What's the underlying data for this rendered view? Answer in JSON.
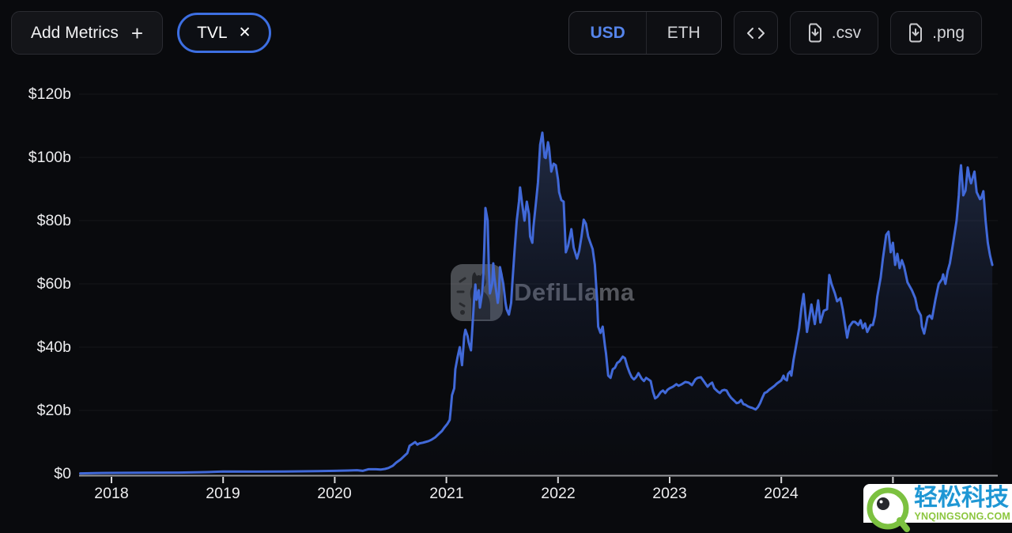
{
  "toolbar": {
    "add_metrics": {
      "label": "Add Metrics",
      "plus_icon": "+"
    },
    "metric_chips": [
      {
        "label": "TVL",
        "close_icon": "✕"
      }
    ],
    "currency_toggle": {
      "options": [
        "USD",
        "ETH"
      ],
      "selected": "USD"
    },
    "downloads": [
      {
        "label": ".csv"
      },
      {
        "label": ".png"
      }
    ]
  },
  "watermarks": {
    "center": "DefiLlama",
    "corner": {
      "title": "轻松科技",
      "subtitle": "YNQINGSONG.COM"
    }
  },
  "colors": {
    "accent_blue": "#3d6fe2",
    "line_blue": "#4169d8",
    "usd_selected": "#5584ea",
    "corner_blue": "#1f97d4",
    "corner_green": "#8cc63f"
  },
  "chart_data": {
    "type": "line",
    "title": "",
    "xlabel": "",
    "ylabel": "",
    "unit": "billion USD",
    "legend": "none",
    "grid": "faint-horizontal",
    "x_axis": {
      "labels": [
        "2018",
        "2019",
        "2020",
        "2021",
        "2022",
        "2023",
        "2024"
      ],
      "tick_years": [
        2018,
        2019,
        2020,
        2021,
        2022,
        2023,
        2024,
        2025
      ],
      "range": [
        2017.7,
        2025.95
      ]
    },
    "y_axis": {
      "labels": [
        "$120b",
        "$100b",
        "$80b",
        "$60b",
        "$40b",
        "$20b",
        "$0"
      ],
      "gridline_values": [
        20,
        40,
        60,
        80,
        100,
        120
      ],
      "range": [
        0,
        120
      ]
    },
    "series": [
      {
        "name": "TVL (USD)",
        "color": "#4169d8",
        "points": [
          [
            2017.72,
            0.1
          ],
          [
            2017.85,
            0.2
          ],
          [
            2018.0,
            0.25
          ],
          [
            2018.3,
            0.3
          ],
          [
            2018.6,
            0.35
          ],
          [
            2018.85,
            0.5
          ],
          [
            2019.0,
            0.7
          ],
          [
            2019.3,
            0.65
          ],
          [
            2019.55,
            0.7
          ],
          [
            2019.85,
            0.8
          ],
          [
            2020.0,
            0.9
          ],
          [
            2020.12,
            1.0
          ],
          [
            2020.2,
            1.1
          ],
          [
            2020.25,
            0.9
          ],
          [
            2020.3,
            1.4
          ],
          [
            2020.37,
            1.4
          ],
          [
            2020.41,
            1.3
          ],
          [
            2020.45,
            1.5
          ],
          [
            2020.48,
            1.8
          ],
          [
            2020.52,
            2.5
          ],
          [
            2020.55,
            3.5
          ],
          [
            2020.59,
            4.5
          ],
          [
            2020.62,
            5.5
          ],
          [
            2020.65,
            6.5
          ],
          [
            2020.67,
            8.8
          ],
          [
            2020.7,
            9.5
          ],
          [
            2020.72,
            10.0
          ],
          [
            2020.74,
            9.2
          ],
          [
            2020.76,
            9.6
          ],
          [
            2020.79,
            9.8
          ],
          [
            2020.81,
            10.0
          ],
          [
            2020.84,
            10.3
          ],
          [
            2020.87,
            10.8
          ],
          [
            2020.9,
            11.5
          ],
          [
            2020.93,
            12.5
          ],
          [
            2020.96,
            13.5
          ],
          [
            2020.98,
            14.5
          ],
          [
            2021.01,
            15.8
          ],
          [
            2021.03,
            17.0
          ],
          [
            2021.04,
            20.5
          ],
          [
            2021.05,
            24.8
          ],
          [
            2021.07,
            27.0
          ],
          [
            2021.08,
            33.0
          ],
          [
            2021.1,
            36.8
          ],
          [
            2021.12,
            40.0
          ],
          [
            2021.14,
            34.3
          ],
          [
            2021.16,
            43.5
          ],
          [
            2021.17,
            45.5
          ],
          [
            2021.19,
            43.5
          ],
          [
            2021.2,
            41.5
          ],
          [
            2021.22,
            39.0
          ],
          [
            2021.25,
            56.0
          ],
          [
            2021.26,
            59.8
          ],
          [
            2021.27,
            55.0
          ],
          [
            2021.29,
            58.0
          ],
          [
            2021.3,
            52.5
          ],
          [
            2021.32,
            57.0
          ],
          [
            2021.33,
            62.0
          ],
          [
            2021.34,
            72.0
          ],
          [
            2021.35,
            84.0
          ],
          [
            2021.37,
            80.0
          ],
          [
            2021.38,
            64.8
          ],
          [
            2021.39,
            57.0
          ],
          [
            2021.41,
            60.0
          ],
          [
            2021.42,
            66.5
          ],
          [
            2021.43,
            62.0
          ],
          [
            2021.46,
            54.0
          ],
          [
            2021.47,
            57.0
          ],
          [
            2021.48,
            65.3
          ],
          [
            2021.51,
            60.0
          ],
          [
            2021.53,
            54.0
          ],
          [
            2021.54,
            52.0
          ],
          [
            2021.56,
            50.3
          ],
          [
            2021.58,
            54.0
          ],
          [
            2021.59,
            59.8
          ],
          [
            2021.61,
            70.0
          ],
          [
            2021.63,
            80.0
          ],
          [
            2021.65,
            86.0
          ],
          [
            2021.66,
            90.5
          ],
          [
            2021.68,
            85.0
          ],
          [
            2021.7,
            80.0
          ],
          [
            2021.72,
            86.0
          ],
          [
            2021.74,
            82.0
          ],
          [
            2021.75,
            75.0
          ],
          [
            2021.77,
            73.0
          ],
          [
            2021.78,
            78.0
          ],
          [
            2021.8,
            85.0
          ],
          [
            2021.82,
            92.0
          ],
          [
            2021.83,
            98.0
          ],
          [
            2021.84,
            104.0
          ],
          [
            2021.86,
            107.8
          ],
          [
            2021.88,
            100.0
          ],
          [
            2021.89,
            99.8
          ],
          [
            2021.91,
            104.8
          ],
          [
            2021.92,
            103.0
          ],
          [
            2021.94,
            95.5
          ],
          [
            2021.96,
            98.0
          ],
          [
            2021.98,
            97.5
          ],
          [
            2022.0,
            93.0
          ],
          [
            2022.01,
            89.0
          ],
          [
            2022.03,
            86.5
          ],
          [
            2022.05,
            86.0
          ],
          [
            2022.07,
            70.0
          ],
          [
            2022.09,
            72.0
          ],
          [
            2022.12,
            77.3
          ],
          [
            2022.14,
            71.5
          ],
          [
            2022.17,
            68.0
          ],
          [
            2022.19,
            70.5
          ],
          [
            2022.21,
            75.0
          ],
          [
            2022.23,
            80.3
          ],
          [
            2022.25,
            79.0
          ],
          [
            2022.27,
            75.0
          ],
          [
            2022.29,
            73.0
          ],
          [
            2022.31,
            71.0
          ],
          [
            2022.33,
            66.0
          ],
          [
            2022.35,
            55.0
          ],
          [
            2022.36,
            46.5
          ],
          [
            2022.38,
            44.5
          ],
          [
            2022.39,
            45.5
          ],
          [
            2022.4,
            46.5
          ],
          [
            2022.42,
            40.5
          ],
          [
            2022.43,
            38.0
          ],
          [
            2022.45,
            31.0
          ],
          [
            2022.47,
            30.3
          ],
          [
            2022.49,
            33.0
          ],
          [
            2022.51,
            33.5
          ],
          [
            2022.53,
            35.0
          ],
          [
            2022.55,
            35.5
          ],
          [
            2022.58,
            37.0
          ],
          [
            2022.6,
            36.5
          ],
          [
            2022.62,
            34.0
          ],
          [
            2022.64,
            32.0
          ],
          [
            2022.66,
            30.5
          ],
          [
            2022.68,
            29.8
          ],
          [
            2022.7,
            30.5
          ],
          [
            2022.72,
            31.8
          ],
          [
            2022.75,
            30.0
          ],
          [
            2022.77,
            29.3
          ],
          [
            2022.79,
            30.3
          ],
          [
            2022.81,
            29.8
          ],
          [
            2022.83,
            29.3
          ],
          [
            2022.85,
            26.0
          ],
          [
            2022.87,
            23.8
          ],
          [
            2022.89,
            24.3
          ],
          [
            2022.92,
            25.8
          ],
          [
            2022.94,
            26.3
          ],
          [
            2022.96,
            25.5
          ],
          [
            2022.98,
            26.5
          ],
          [
            2023.0,
            27.0
          ],
          [
            2023.03,
            27.5
          ],
          [
            2023.06,
            28.3
          ],
          [
            2023.08,
            27.8
          ],
          [
            2023.11,
            28.3
          ],
          [
            2023.14,
            29.0
          ],
          [
            2023.17,
            28.8
          ],
          [
            2023.2,
            28.0
          ],
          [
            2023.23,
            29.8
          ],
          [
            2023.25,
            30.3
          ],
          [
            2023.28,
            30.5
          ],
          [
            2023.3,
            29.5
          ],
          [
            2023.32,
            28.5
          ],
          [
            2023.34,
            27.5
          ],
          [
            2023.36,
            28.3
          ],
          [
            2023.38,
            28.8
          ],
          [
            2023.4,
            27.0
          ],
          [
            2023.43,
            26.0
          ],
          [
            2023.45,
            25.5
          ],
          [
            2023.47,
            26.3
          ],
          [
            2023.49,
            26.5
          ],
          [
            2023.51,
            26.3
          ],
          [
            2023.53,
            25.0
          ],
          [
            2023.55,
            24.0
          ],
          [
            2023.58,
            23.0
          ],
          [
            2023.6,
            22.3
          ],
          [
            2023.62,
            22.5
          ],
          [
            2023.64,
            23.3
          ],
          [
            2023.66,
            22.0
          ],
          [
            2023.68,
            21.8
          ],
          [
            2023.7,
            21.3
          ],
          [
            2023.72,
            21.0
          ],
          [
            2023.74,
            20.8
          ],
          [
            2023.77,
            20.3
          ],
          [
            2023.79,
            21.0
          ],
          [
            2023.81,
            22.3
          ],
          [
            2023.83,
            24.0
          ],
          [
            2023.85,
            25.5
          ],
          [
            2023.87,
            25.8
          ],
          [
            2023.89,
            26.5
          ],
          [
            2023.91,
            27.0
          ],
          [
            2023.94,
            27.8
          ],
          [
            2023.96,
            28.5
          ],
          [
            2023.98,
            29.0
          ],
          [
            2024.0,
            29.5
          ],
          [
            2024.02,
            31.0
          ],
          [
            2024.03,
            30.0
          ],
          [
            2024.05,
            29.5
          ],
          [
            2024.06,
            31.5
          ],
          [
            2024.08,
            32.3
          ],
          [
            2024.09,
            31.0
          ],
          [
            2024.11,
            36.0
          ],
          [
            2024.13,
            40.0
          ],
          [
            2024.16,
            46.0
          ],
          [
            2024.18,
            52.3
          ],
          [
            2024.2,
            56.8
          ],
          [
            2024.23,
            44.8
          ],
          [
            2024.27,
            53.5
          ],
          [
            2024.3,
            47.3
          ],
          [
            2024.33,
            54.8
          ],
          [
            2024.35,
            47.8
          ],
          [
            2024.38,
            51.5
          ],
          [
            2024.41,
            52.0
          ],
          [
            2024.43,
            62.8
          ],
          [
            2024.45,
            60.0
          ],
          [
            2024.48,
            57.0
          ],
          [
            2024.5,
            54.5
          ],
          [
            2024.53,
            55.5
          ],
          [
            2024.55,
            52.0
          ],
          [
            2024.59,
            43.0
          ],
          [
            2024.61,
            46.5
          ],
          [
            2024.64,
            48.0
          ],
          [
            2024.66,
            48.0
          ],
          [
            2024.69,
            47.0
          ],
          [
            2024.71,
            48.5
          ],
          [
            2024.73,
            46.0
          ],
          [
            2024.75,
            47.5
          ],
          [
            2024.77,
            44.8
          ],
          [
            2024.8,
            47.0
          ],
          [
            2024.82,
            47.0
          ],
          [
            2024.84,
            50.0
          ],
          [
            2024.86,
            56.0
          ],
          [
            2024.89,
            62.0
          ],
          [
            2024.91,
            68.0
          ],
          [
            2024.94,
            75.5
          ],
          [
            2024.96,
            76.5
          ],
          [
            2024.98,
            70.0
          ],
          [
            2025.0,
            73.0
          ],
          [
            2025.02,
            66.0
          ],
          [
            2025.04,
            69.5
          ],
          [
            2025.06,
            65.0
          ],
          [
            2025.08,
            67.5
          ],
          [
            2025.1,
            65.5
          ],
          [
            2025.13,
            60.5
          ],
          [
            2025.17,
            58.0
          ],
          [
            2025.2,
            55.5
          ],
          [
            2025.22,
            52.0
          ],
          [
            2025.25,
            50.0
          ],
          [
            2025.26,
            46.5
          ],
          [
            2025.28,
            44.3
          ],
          [
            2025.31,
            49.5
          ],
          [
            2025.33,
            50.0
          ],
          [
            2025.35,
            49.0
          ],
          [
            2025.38,
            55.0
          ],
          [
            2025.41,
            60.0
          ],
          [
            2025.44,
            61.5
          ],
          [
            2025.45,
            63.0
          ],
          [
            2025.47,
            60.0
          ],
          [
            2025.49,
            64.0
          ],
          [
            2025.51,
            66.5
          ],
          [
            2025.54,
            73.0
          ],
          [
            2025.57,
            80.0
          ],
          [
            2025.59,
            88.0
          ],
          [
            2025.6,
            94.0
          ],
          [
            2025.61,
            97.5
          ],
          [
            2025.63,
            88.0
          ],
          [
            2025.65,
            89.5
          ],
          [
            2025.67,
            96.8
          ],
          [
            2025.69,
            93.0
          ],
          [
            2025.7,
            91.8
          ],
          [
            2025.73,
            95.5
          ],
          [
            2025.75,
            89.0
          ],
          [
            2025.78,
            86.8
          ],
          [
            2025.79,
            87.0
          ],
          [
            2025.81,
            89.3
          ],
          [
            2025.83,
            80.0
          ],
          [
            2025.85,
            73.0
          ],
          [
            2025.87,
            69.0
          ],
          [
            2025.89,
            66.0
          ]
        ]
      }
    ]
  }
}
